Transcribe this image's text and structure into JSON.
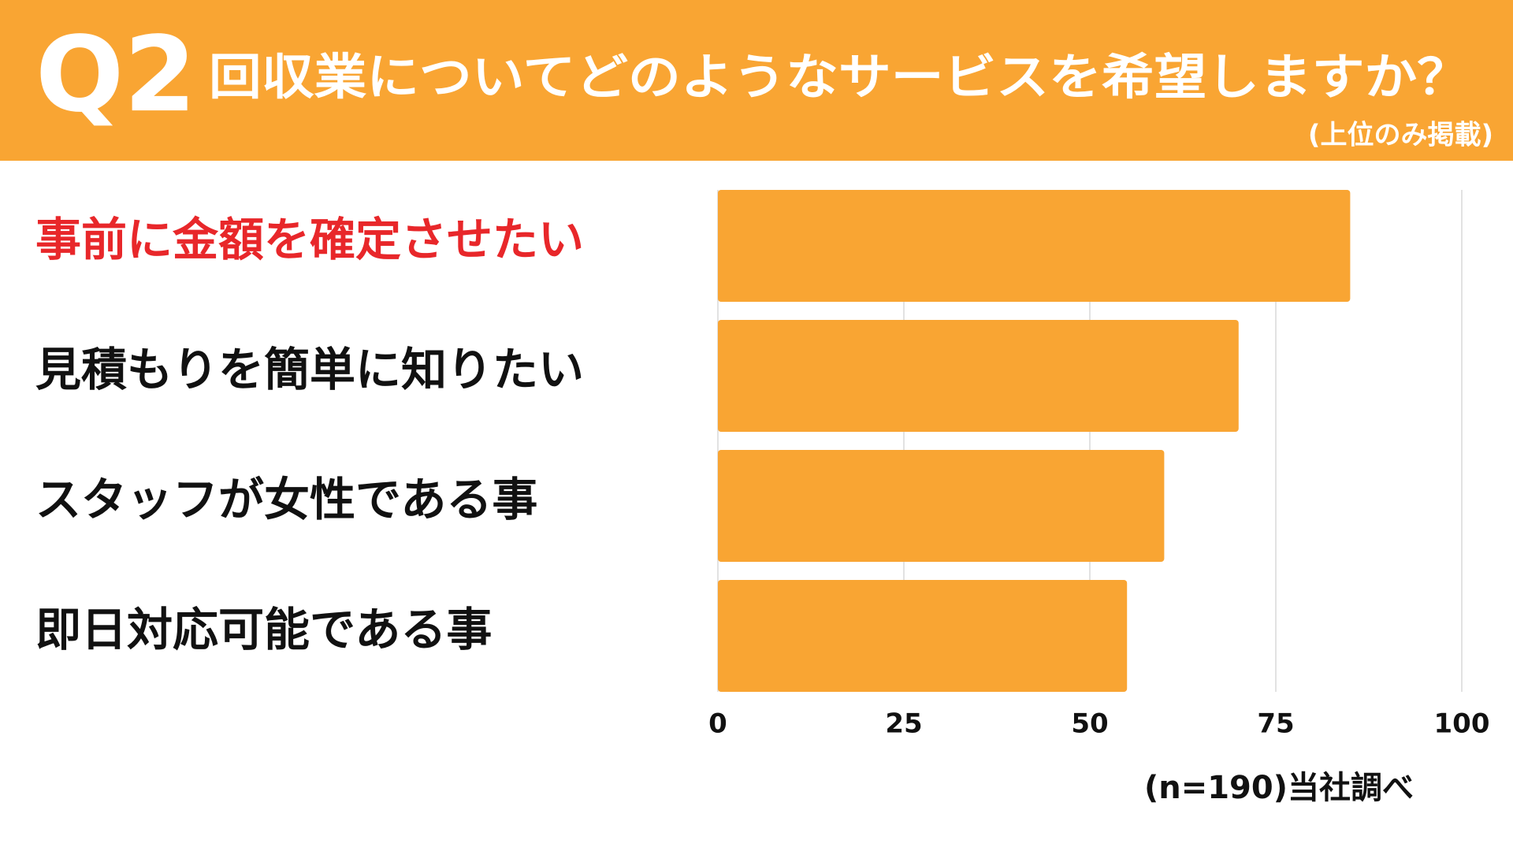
{
  "chart_data": {
    "type": "bar",
    "orientation": "horizontal",
    "question_label": "Q2",
    "title": "回収業についてどのようなサービスを希望しますか？",
    "subtitle": "(上位のみ掲載)",
    "note": "(n=190)当社調べ",
    "categories": [
      "事前に金額を確定させたい",
      "見積もりを簡単に知りたい",
      "スタッフが女性である事",
      "即日対応可能である事"
    ],
    "label_colors": [
      "#e8272a",
      "#111111",
      "#111111",
      "#111111"
    ],
    "values": [
      85,
      70,
      60,
      55
    ],
    "color": "#f9a533",
    "xlim": [
      0,
      100
    ],
    "xticks": [
      0,
      25,
      50,
      75,
      100
    ],
    "grid": true
  }
}
